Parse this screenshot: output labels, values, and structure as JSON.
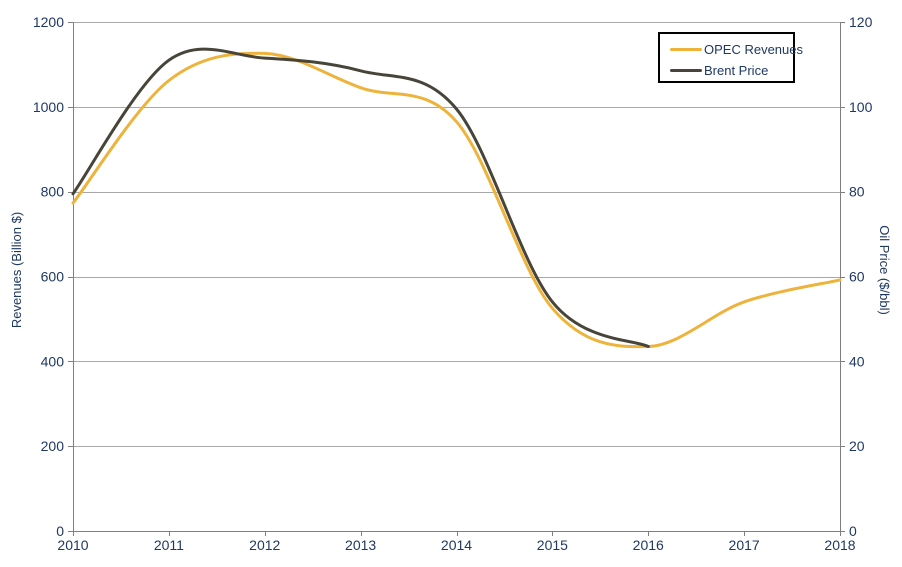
{
  "chart_data": {
    "type": "line",
    "title": "",
    "grid": true,
    "x_axis": {
      "ticks": [
        2010,
        2011,
        2012,
        2013,
        2014,
        2015,
        2016,
        2017,
        2018
      ],
      "range": [
        2010,
        2018
      ]
    },
    "left_axis": {
      "label": "Revenues (Billion $)",
      "ticks": [
        0,
        200,
        400,
        600,
        800,
        1000,
        1200
      ],
      "range": [
        0,
        1200
      ]
    },
    "right_axis": {
      "label": "Oil Price ($/bbl)",
      "ticks": [
        0,
        20,
        40,
        60,
        80,
        100,
        120
      ],
      "range": [
        0,
        120
      ]
    },
    "series": [
      {
        "name": "OPEC Revenues",
        "axis": "left",
        "color": "#EEB33B",
        "x": [
          2010,
          2011,
          2012,
          2013,
          2014,
          2015,
          2016,
          2017,
          2018
        ],
        "values": [
          773,
          1062,
          1126,
          1045,
          965,
          525,
          435,
          540,
          592
        ]
      },
      {
        "name": "Brent Price",
        "axis": "right",
        "color": "#474539",
        "x": [
          2010,
          2011,
          2012,
          2013,
          2014,
          2015,
          2016
        ],
        "values": [
          79.5,
          111,
          111.5,
          108.5,
          99.5,
          54,
          43.5
        ]
      }
    ],
    "legend": {
      "position": "top-right",
      "entries": [
        "OPEC Revenues",
        "Brent Price"
      ]
    }
  },
  "colors": {
    "background": "#FFFFFF",
    "grid": "#A8A8A8",
    "axis": "#7F7F7F",
    "text": "#1F3864"
  }
}
